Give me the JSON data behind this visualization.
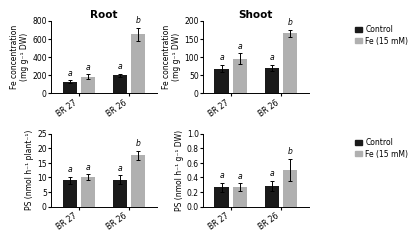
{
  "top_left": {
    "title": "Root",
    "ylabel": "Fe concentration\n(mg g⁻¹ DW)",
    "ylim": [
      0,
      800
    ],
    "yticks": [
      0,
      200,
      400,
      600,
      800
    ],
    "groups": [
      "BR 27",
      "BR 26"
    ],
    "control_vals": [
      130,
      200
    ],
    "fe_vals": [
      185,
      650
    ],
    "control_err": [
      15,
      15
    ],
    "fe_err": [
      25,
      70
    ],
    "letters_control": [
      "a",
      "a"
    ],
    "letters_fe": [
      "a",
      "b"
    ]
  },
  "top_right": {
    "title": "Shoot",
    "ylabel": "Fe concentration\n(mg g⁻¹ DW)",
    "ylim": [
      0,
      200
    ],
    "yticks": [
      0,
      50,
      100,
      150,
      200
    ],
    "groups": [
      "BR 27",
      "BR 26"
    ],
    "control_vals": [
      68,
      70
    ],
    "fe_vals": [
      95,
      165
    ],
    "control_err": [
      10,
      8
    ],
    "fe_err": [
      15,
      10
    ],
    "letters_control": [
      "a",
      "a"
    ],
    "letters_fe": [
      "a",
      "b"
    ]
  },
  "bottom_left": {
    "ylabel": "PS (nmol h⁻¹ plant⁻¹)",
    "ylim": [
      0,
      25
    ],
    "yticks": [
      0,
      5,
      10,
      15,
      20,
      25
    ],
    "groups": [
      "BR 27",
      "BR 26"
    ],
    "control_vals": [
      9,
      9.2
    ],
    "fe_vals": [
      10,
      17.5
    ],
    "control_err": [
      1.2,
      1.5
    ],
    "fe_err": [
      1.0,
      1.5
    ],
    "letters_control": [
      "a",
      "a"
    ],
    "letters_fe": [
      "a",
      "b"
    ]
  },
  "bottom_right": {
    "ylabel": "PS (nmol h⁻¹ g⁻¹ DW)",
    "ylim": [
      0,
      1.0
    ],
    "yticks": [
      0.0,
      0.2,
      0.4,
      0.6,
      0.8,
      1.0
    ],
    "groups": [
      "BR 27",
      "BR 26"
    ],
    "control_vals": [
      0.265,
      0.285
    ],
    "fe_vals": [
      0.27,
      0.5
    ],
    "control_err": [
      0.06,
      0.07
    ],
    "fe_err": [
      0.05,
      0.15
    ],
    "letters_control": [
      "a",
      "a"
    ],
    "letters_fe": [
      "a",
      "b"
    ]
  },
  "control_color": "#1a1a1a",
  "fe_color": "#b0b0b0",
  "bar_width": 0.28,
  "legend_labels": [
    "Control",
    "Fe (15 mM)"
  ],
  "letter_fontsize": 5.5,
  "title_fontsize": 7.5,
  "label_fontsize": 5.5,
  "tick_fontsize": 5.5
}
